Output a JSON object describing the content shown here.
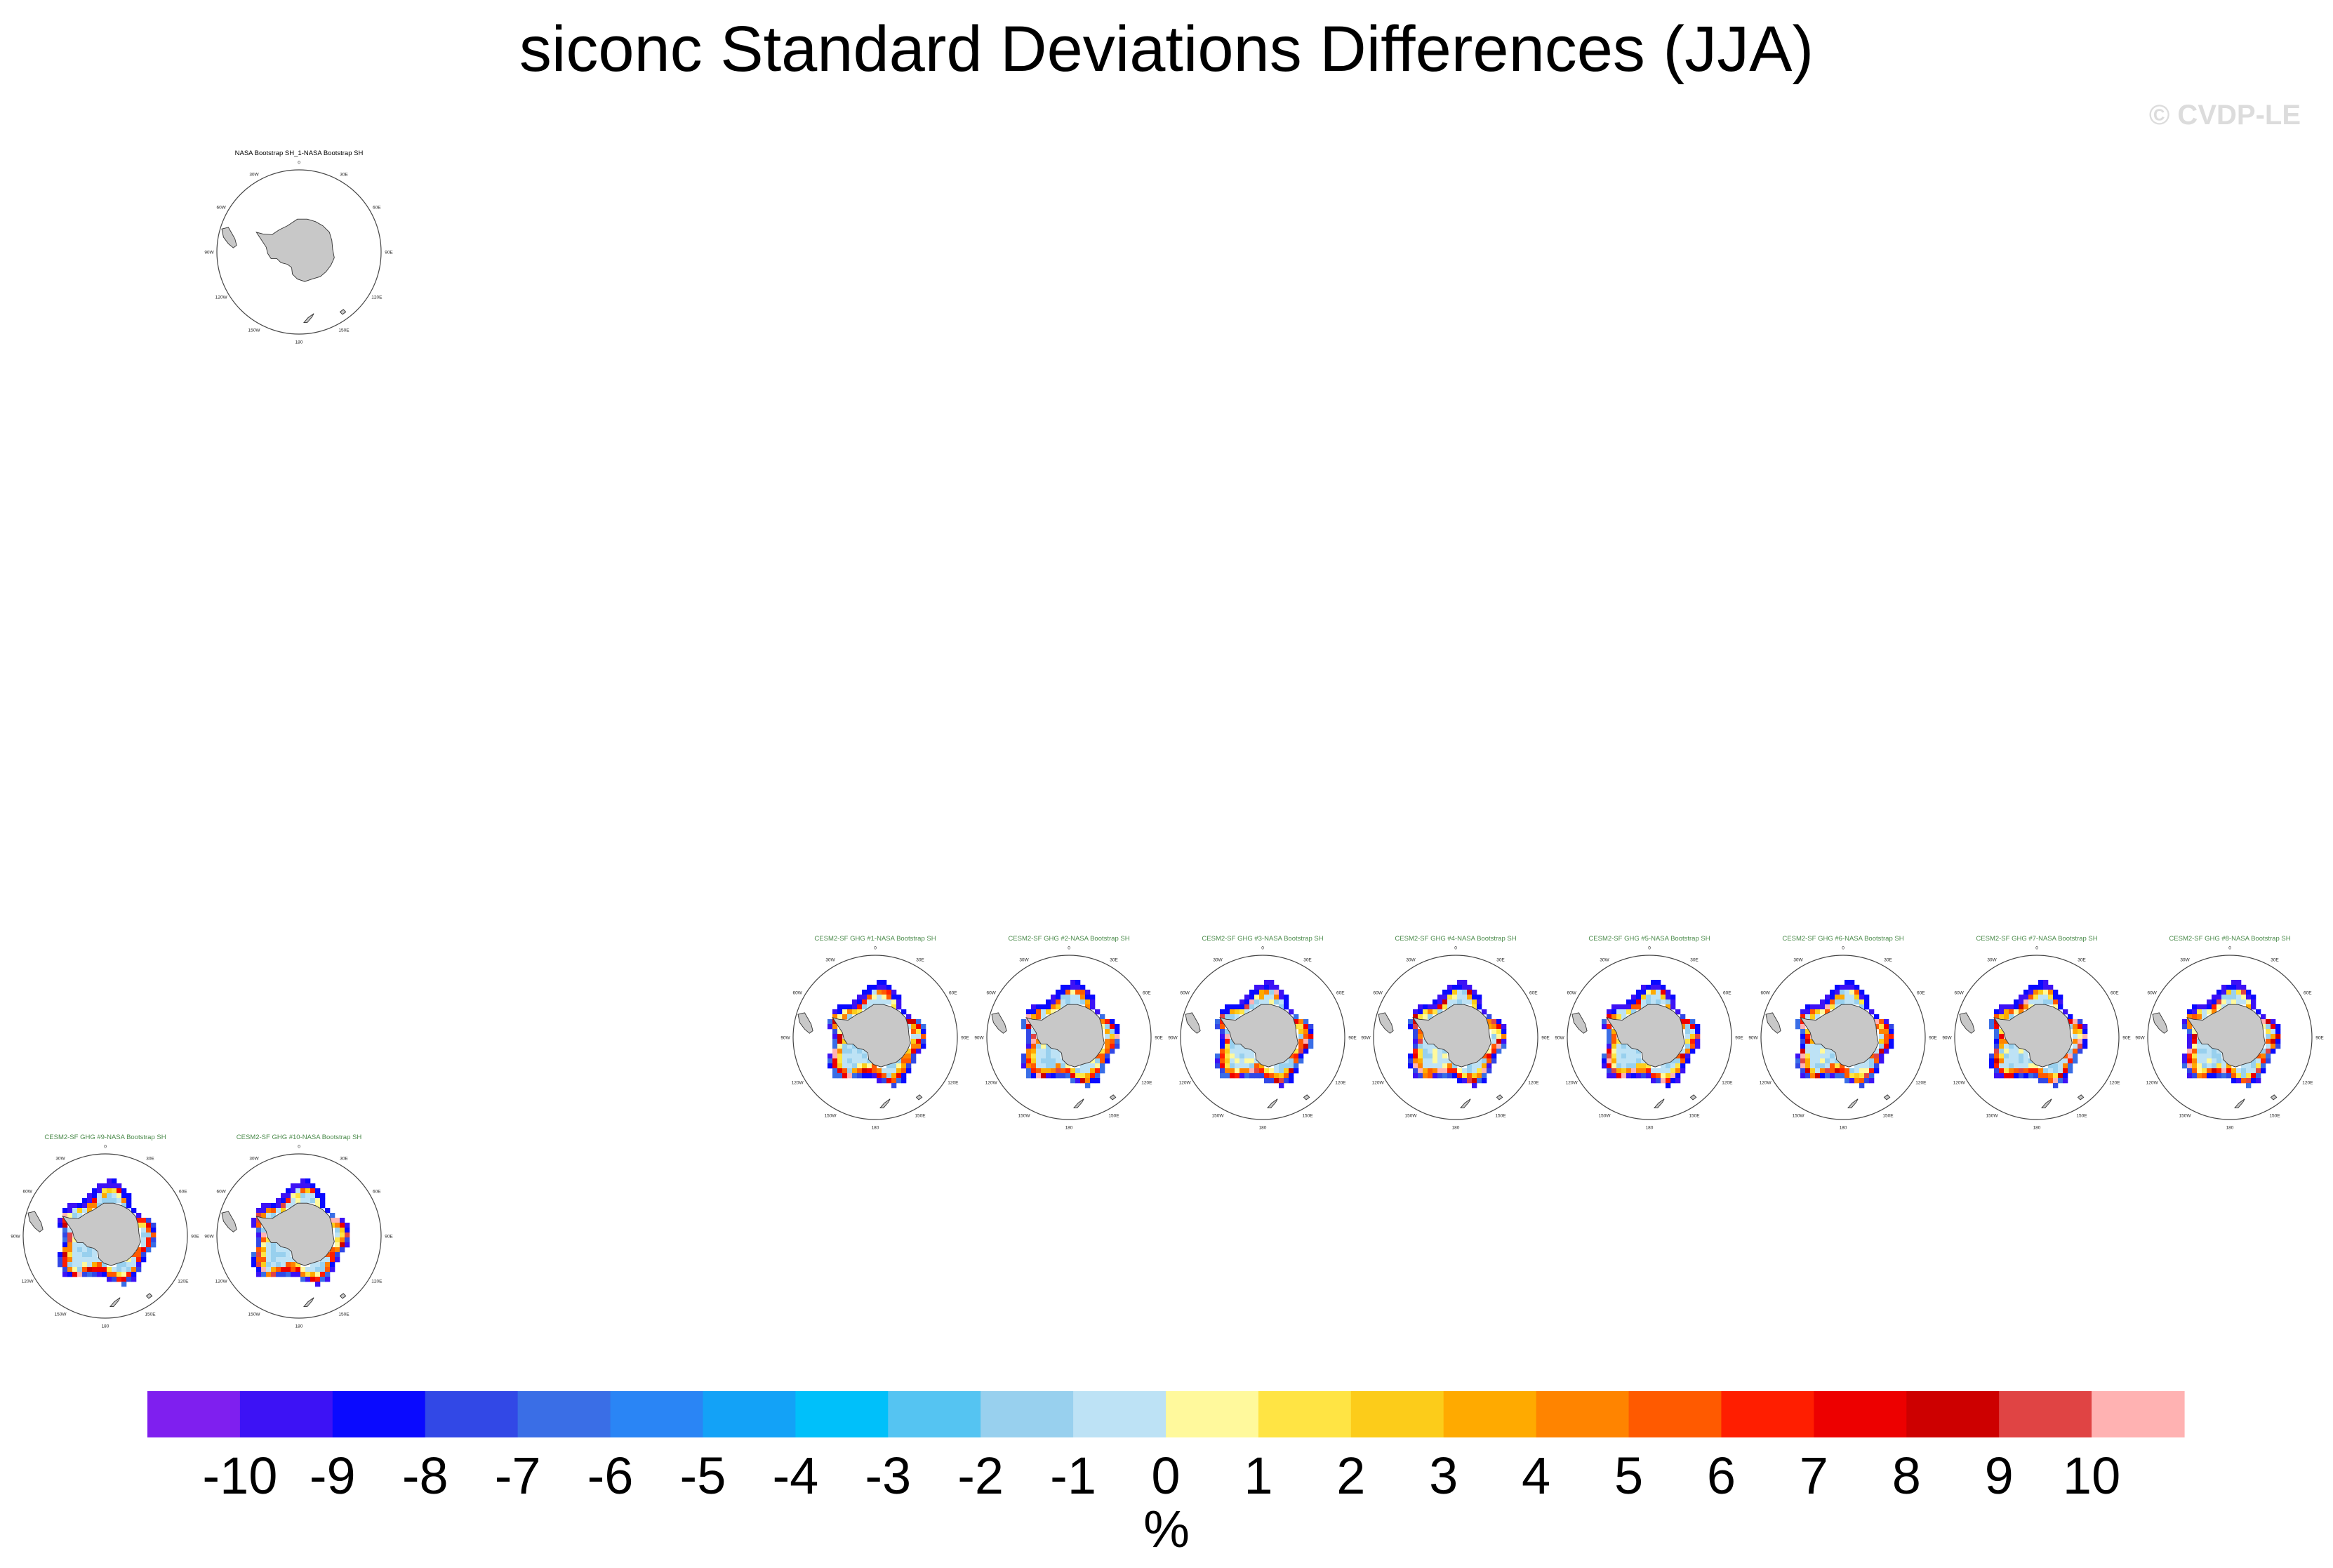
{
  "title": "siconc Standard Deviations Differences (JJA)",
  "copyright": "© CVDP-LE",
  "colors": {
    "land": "#c8c8c8",
    "ocean": "#ffffff",
    "coast": "#333333",
    "panel_title": "#4a8a4a",
    "ref_title": "#000000"
  },
  "panel_labels": {
    "lon_0": "0",
    "lon_30w": "30W",
    "lon_30e": "30E",
    "lon_60w": "60W",
    "lon_60e": "60E",
    "lon_90w": "90W",
    "lon_90e": "90E",
    "lon_120w": "120W",
    "lon_120e": "120E",
    "lon_150w": "150W",
    "lon_150e": "150E",
    "lon_180": "180"
  },
  "chart_data": {
    "type": "heatmap",
    "colorbar": {
      "levels": [
        "-10",
        "-9",
        "-8",
        "-7",
        "-6",
        "-5",
        "-4",
        "-3",
        "-2",
        "-1",
        "0",
        "1",
        "2",
        "3",
        "4",
        "5",
        "6",
        "7",
        "8",
        "9",
        "10"
      ],
      "colors": [
        "#7f1fef",
        "#3d12f5",
        "#0a0aff",
        "#3248e6",
        "#3a6ee6",
        "#2a85f5",
        "#13a2f7",
        "#00c0fa",
        "#55c4f2",
        "#98d0ee",
        "#bde2f5",
        "#fff99c",
        "#ffe444",
        "#fccc1a",
        "#ffaa00",
        "#ff8400",
        "#ff5a00",
        "#ff1e00",
        "#ed0000",
        "#cd0000",
        "#e04444",
        "#ffb2b2"
      ],
      "units": "%"
    },
    "panels": [
      {
        "id": "ref",
        "title": "NASA Bootstrap SH_1-NASA Bootstrap SH",
        "reference": true
      },
      {
        "id": "m1",
        "title": "CESM2-SF GHG #1-NASA Bootstrap SH"
      },
      {
        "id": "m2",
        "title": "CESM2-SF GHG #2-NASA Bootstrap SH"
      },
      {
        "id": "m3",
        "title": "CESM2-SF GHG #3-NASA Bootstrap SH"
      },
      {
        "id": "m4",
        "title": "CESM2-SF GHG #4-NASA Bootstrap SH"
      },
      {
        "id": "m5",
        "title": "CESM2-SF GHG #5-NASA Bootstrap SH"
      },
      {
        "id": "m6",
        "title": "CESM2-SF GHG #6-NASA Bootstrap SH"
      },
      {
        "id": "m7",
        "title": "CESM2-SF GHG #7-NASA Bootstrap SH"
      },
      {
        "id": "m8",
        "title": "CESM2-SF GHG #8-NASA Bootstrap SH"
      },
      {
        "id": "m9",
        "title": "CESM2-SF GHG #9-NASA Bootstrap SH"
      },
      {
        "id": "m10",
        "title": "CESM2-SF GHG #10-NASA Bootstrap SH"
      }
    ]
  }
}
